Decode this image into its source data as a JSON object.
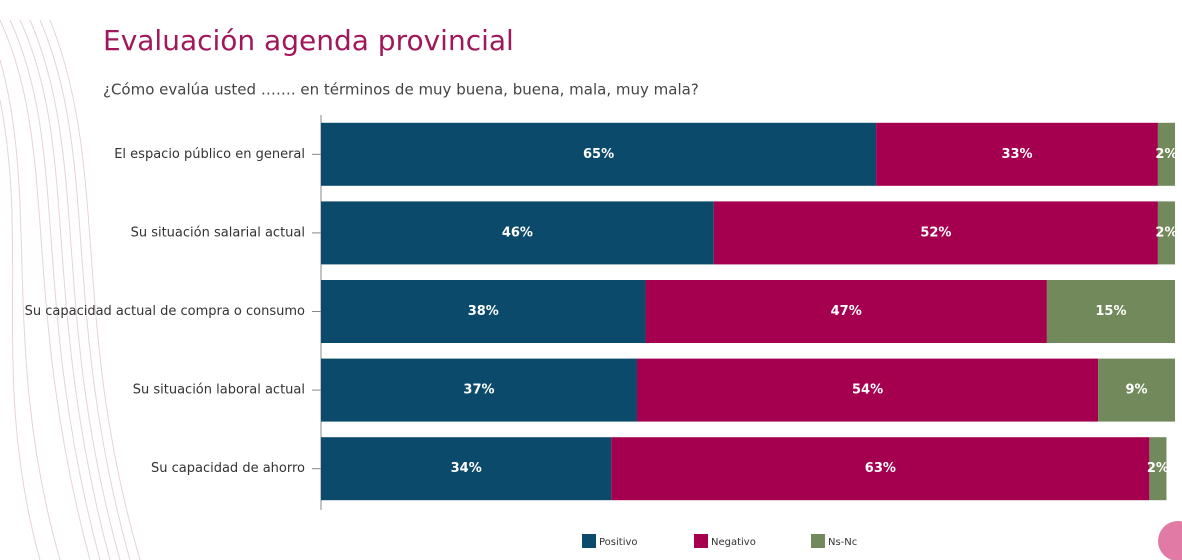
{
  "chart_data": {
    "type": "stacked-bar-horizontal",
    "title": "Evaluación agenda provincial",
    "subtitle": "¿Cómo evalúa usted ……. en términos de muy buena, buena, mala, muy mala?",
    "categories": [
      "El espacio público en general",
      "Su situación salarial actual",
      "Su capacidad actual de compra o consumo",
      "Su situación laboral actual",
      "Su capacidad de ahorro"
    ],
    "series": [
      {
        "name": "Positivo",
        "color": "#0b4a6b",
        "values": [
          65,
          46,
          38,
          37,
          34
        ],
        "value_labels": [
          "65%",
          "46%",
          "38%",
          "37%",
          "34%"
        ]
      },
      {
        "name": "Negativo",
        "color": "#a5004f",
        "values": [
          33,
          52,
          47,
          54,
          63
        ],
        "value_labels": [
          "33%",
          "52%",
          "47%",
          "54%",
          "63%"
        ]
      },
      {
        "name": "Ns-Nc",
        "color": "#71895b",
        "values": [
          2,
          2,
          15,
          9,
          2
        ],
        "value_labels": [
          "2%",
          "2%",
          "15%",
          "9%",
          "2%"
        ]
      }
    ],
    "xlim": [
      0,
      100
    ],
    "legend": "bottom"
  }
}
